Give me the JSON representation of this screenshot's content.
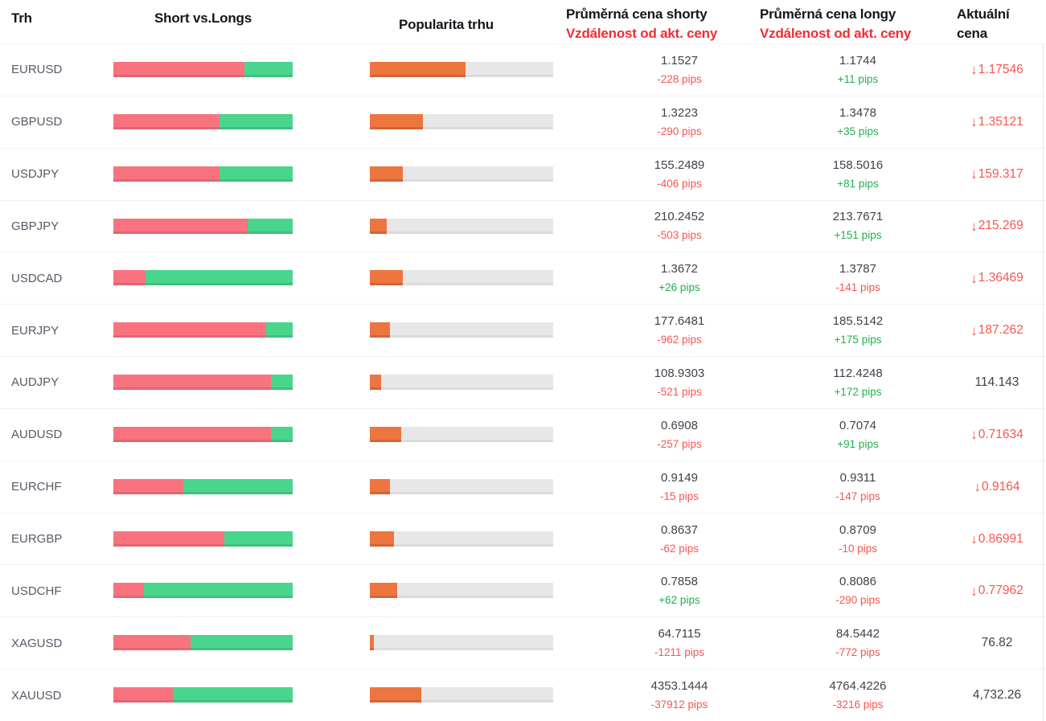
{
  "headers": {
    "market": "Trh",
    "short_vs_longs": "Short vs.Longs",
    "popularity": "Popularita trhu",
    "avg_short_price": "Průměrná cena shorty",
    "avg_short_distance": "Vzdálenost od akt. ceny",
    "avg_long_price": "Průměrná cena longy",
    "avg_long_distance": "Vzdálenost od akt. ceny",
    "current_price": "Aktuální cena"
  },
  "icons": {
    "down_arrow": "↓"
  },
  "colors": {
    "bar_short": "#f9737f",
    "bar_long": "#49d58c",
    "bar_popularity": "#ed753f",
    "bar_track": "#e7e7e8",
    "header_red": "#ee2e34",
    "pips_negative": "#f85550",
    "pips_positive": "#21b04e",
    "price_down_red": "#f85550",
    "text_dark": "#3f424c",
    "market_label": "#585a66"
  },
  "rows": [
    {
      "market": "EURUSD",
      "short_percent": 73,
      "long_percent": 27,
      "popularity_percent": 52,
      "avg_short_price": "1.1527",
      "short_distance": "-228 pips",
      "short_distance_color": "negative",
      "avg_long_price": "1.1744",
      "long_distance": "+11 pips",
      "long_distance_color": "positive",
      "current_price": "1.17546",
      "current_direction": "down"
    },
    {
      "market": "GBPUSD",
      "short_percent": 59,
      "long_percent": 41,
      "popularity_percent": 29,
      "avg_short_price": "1.3223",
      "short_distance": "-290 pips",
      "short_distance_color": "negative",
      "avg_long_price": "1.3478",
      "long_distance": "+35 pips",
      "long_distance_color": "positive",
      "current_price": "1.35121",
      "current_direction": "down"
    },
    {
      "market": "USDJPY",
      "short_percent": 59,
      "long_percent": 41,
      "popularity_percent": 18,
      "avg_short_price": "155.2489",
      "short_distance": "-406 pips",
      "short_distance_color": "negative",
      "avg_long_price": "158.5016",
      "long_distance": "+81 pips",
      "long_distance_color": "positive",
      "current_price": "159.317",
      "current_direction": "down"
    },
    {
      "market": "GBPJPY",
      "short_percent": 75,
      "long_percent": 25,
      "popularity_percent": 9,
      "avg_short_price": "210.2452",
      "short_distance": "-503 pips",
      "short_distance_color": "negative",
      "avg_long_price": "213.7671",
      "long_distance": "+151 pips",
      "long_distance_color": "positive",
      "current_price": "215.269",
      "current_direction": "down"
    },
    {
      "market": "USDCAD",
      "short_percent": 18,
      "long_percent": 82,
      "popularity_percent": 18,
      "avg_short_price": "1.3672",
      "short_distance": "+26 pips",
      "short_distance_color": "positive",
      "avg_long_price": "1.3787",
      "long_distance": "-141 pips",
      "long_distance_color": "negative",
      "current_price": "1.36469",
      "current_direction": "down"
    },
    {
      "market": "EURJPY",
      "short_percent": 85,
      "long_percent": 15,
      "popularity_percent": 11,
      "avg_short_price": "177.6481",
      "short_distance": "-962 pips",
      "short_distance_color": "negative",
      "avg_long_price": "185.5142",
      "long_distance": "+175 pips",
      "long_distance_color": "positive",
      "current_price": "187.262",
      "current_direction": "down"
    },
    {
      "market": "AUDJPY",
      "short_percent": 88,
      "long_percent": 12,
      "popularity_percent": 6,
      "avg_short_price": "108.9303",
      "short_distance": "-521 pips",
      "short_distance_color": "negative",
      "avg_long_price": "112.4248",
      "long_distance": "+172 pips",
      "long_distance_color": "positive",
      "current_price": "114.143",
      "current_direction": "none"
    },
    {
      "market": "AUDUSD",
      "short_percent": 88,
      "long_percent": 12,
      "popularity_percent": 17,
      "avg_short_price": "0.6908",
      "short_distance": "-257 pips",
      "short_distance_color": "negative",
      "avg_long_price": "0.7074",
      "long_distance": "+91 pips",
      "long_distance_color": "positive",
      "current_price": "0.71634",
      "current_direction": "down"
    },
    {
      "market": "EURCHF",
      "short_percent": 39,
      "long_percent": 61,
      "popularity_percent": 11,
      "avg_short_price": "0.9149",
      "short_distance": "-15 pips",
      "short_distance_color": "negative",
      "avg_long_price": "0.9311",
      "long_distance": "-147 pips",
      "long_distance_color": "negative",
      "current_price": "0.9164",
      "current_direction": "down"
    },
    {
      "market": "EURGBP",
      "short_percent": 62,
      "long_percent": 38,
      "popularity_percent": 13,
      "avg_short_price": "0.8637",
      "short_distance": "-62 pips",
      "short_distance_color": "negative",
      "avg_long_price": "0.8709",
      "long_distance": "-10 pips",
      "long_distance_color": "negative",
      "current_price": "0.86991",
      "current_direction": "down"
    },
    {
      "market": "USDCHF",
      "short_percent": 17,
      "long_percent": 83,
      "popularity_percent": 15,
      "avg_short_price": "0.7858",
      "short_distance": "+62 pips",
      "short_distance_color": "positive",
      "avg_long_price": "0.8086",
      "long_distance": "-290 pips",
      "long_distance_color": "negative",
      "current_price": "0.77962",
      "current_direction": "down"
    },
    {
      "market": "XAGUSD",
      "short_percent": 43,
      "long_percent": 57,
      "popularity_percent": 2,
      "avg_short_price": "64.7115",
      "short_distance": "-1211 pips",
      "short_distance_color": "negative",
      "avg_long_price": "84.5442",
      "long_distance": "-772 pips",
      "long_distance_color": "negative",
      "current_price": "76.82",
      "current_direction": "none"
    },
    {
      "market": "XAUUSD",
      "short_percent": 33,
      "long_percent": 67,
      "popularity_percent": 28,
      "avg_short_price": "4353.1444",
      "short_distance": "-37912 pips",
      "short_distance_color": "negative",
      "avg_long_price": "4764.4226",
      "long_distance": "-3216 pips",
      "long_distance_color": "negative",
      "current_price": "4,732.26",
      "current_direction": "none"
    }
  ]
}
